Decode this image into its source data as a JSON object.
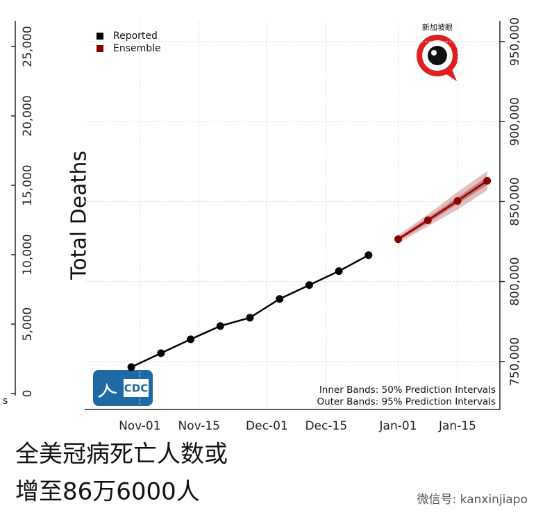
{
  "chart_data": {
    "type": "line",
    "y_label": "Total Deaths",
    "x": [
      -2,
      5,
      12,
      19,
      26,
      33,
      40,
      47,
      54
    ],
    "series": [
      {
        "name": "Reported",
        "color": "#000000",
        "axis": "y2",
        "x": [
          -2,
          5,
          12,
          19,
          26,
          33,
          40,
          47,
          54
        ],
        "values": [
          746500,
          755200,
          763900,
          772200,
          777400,
          789100,
          797800,
          806500,
          816500
        ]
      },
      {
        "name": "Ensemble",
        "color": "#8b0000",
        "axis": "y2",
        "x": [
          61,
          68,
          75,
          82
        ],
        "values": [
          826500,
          838300,
          850400,
          863000
        ],
        "outer_low": [
          824000,
          834500,
          845000,
          857000
        ],
        "outer_high": [
          829000,
          842000,
          856000,
          869000
        ],
        "inner_low": [
          825500,
          836500,
          848500,
          860500
        ],
        "inner_high": [
          827500,
          840000,
          852500,
          865500
        ]
      }
    ],
    "xlim": [
      -13,
      85
    ],
    "xticks": [
      {
        "value": 0,
        "label": "Nov-01"
      },
      {
        "value": 14,
        "label": "Nov-15"
      },
      {
        "value": 30,
        "label": "Dec-01"
      },
      {
        "value": 44,
        "label": "Dec-15"
      },
      {
        "value": 61,
        "label": "Jan-01"
      },
      {
        "value": 75,
        "label": "Jan-15"
      }
    ],
    "ylim": [
      -1150,
      26850
    ],
    "yticks": [
      0,
      {
        "value": 5000,
        "label": "5,000"
      },
      {
        "value": 10000,
        "label": "10,000"
      },
      {
        "value": 15000,
        "label": "15,000"
      },
      {
        "value": 20000,
        "label": "20,000"
      },
      {
        "value": 25000,
        "label": "25,000"
      }
    ],
    "y2lim": [
      720000,
      963000
    ],
    "y2ticks": [
      {
        "value": 750000,
        "label": "750,000"
      },
      {
        "value": 800000,
        "label": "800,000"
      },
      {
        "value": 850000,
        "label": "850,000"
      },
      {
        "value": 900000,
        "label": "900,000"
      },
      {
        "value": 950000,
        "label": "950,000"
      }
    ],
    "grid": true,
    "legend": "top-left",
    "notes": [
      "Inner Bands: 50% Prediction Intervals",
      "Outer Bands: 95% Prediction Intervals"
    ],
    "cropped_label": "s"
  },
  "logos": {
    "cdc": "CDC",
    "watermark": "新加坡眼"
  },
  "caption": [
    "全美冠病死亡人数或",
    "增至86万6000人"
  ],
  "footer": "微信号: kanxinjiapo"
}
